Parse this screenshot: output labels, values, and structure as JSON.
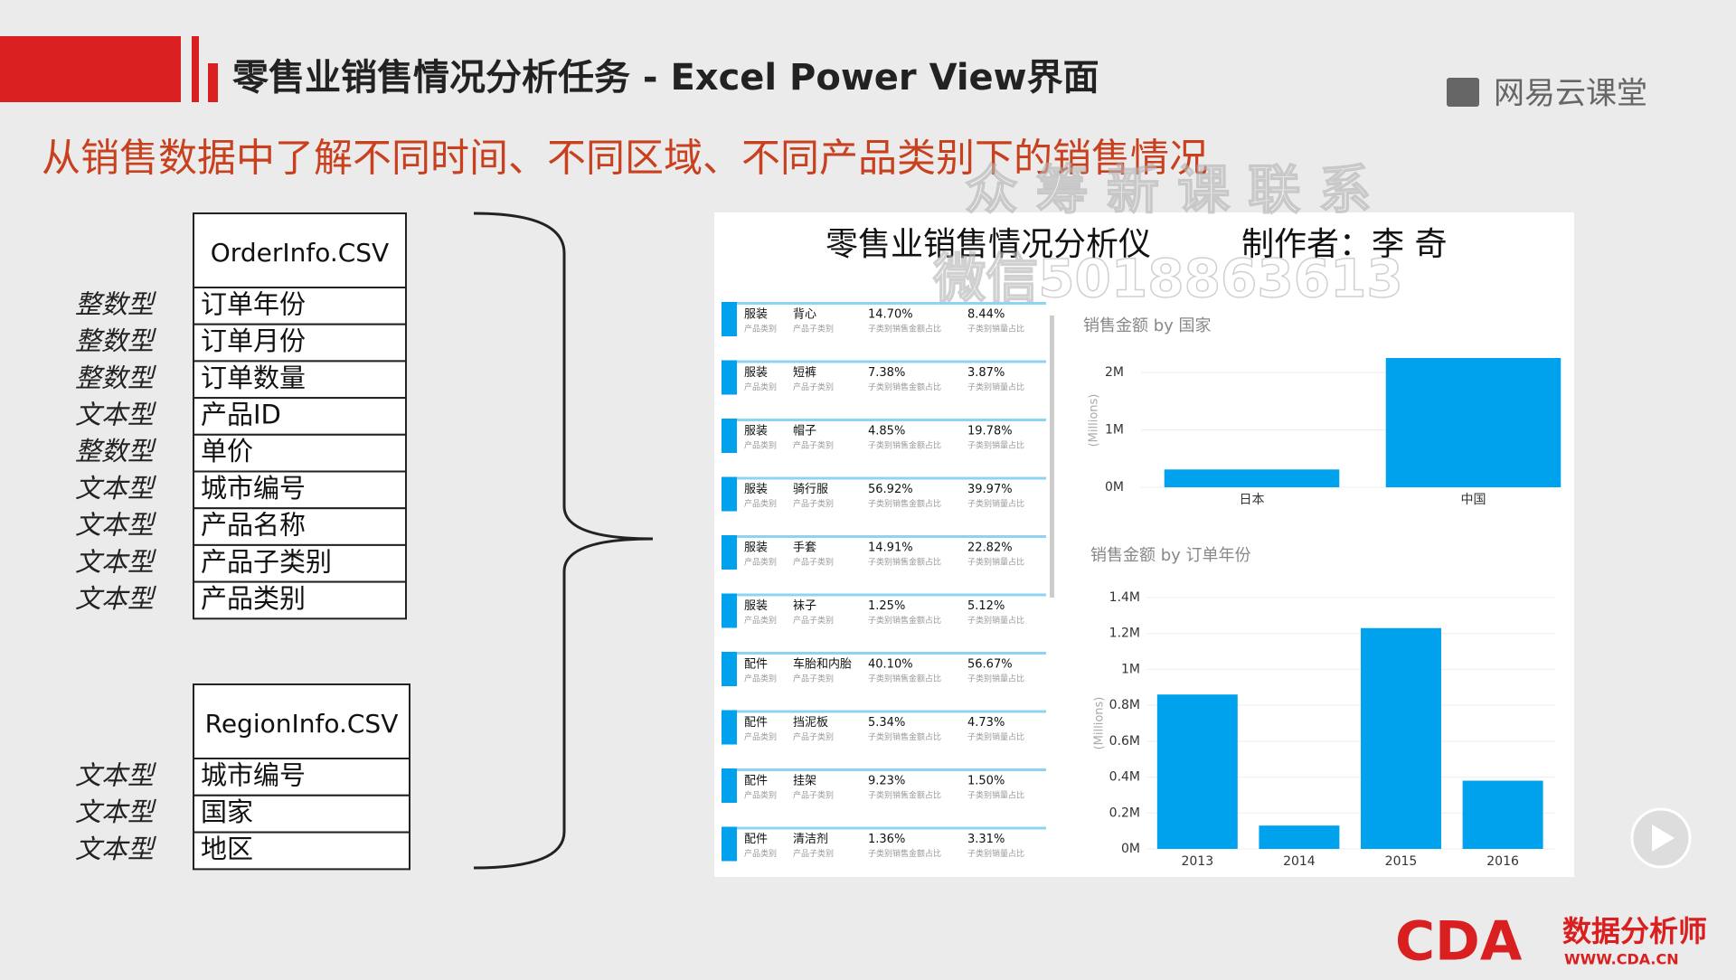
{
  "header": {
    "title": "零售业销售情况分析任务 - Excel Power View界面",
    "logo": "网易云课堂",
    "subtitle": "从销售数据中了解不同时间、不同区域、不同产品类别下的销售情况"
  },
  "watermark": [
    "众 筹 新 课 联 系",
    "微信5018863613"
  ],
  "tables": [
    {
      "title": "OrderInfo.CSV",
      "rows": [
        [
          "整数型",
          "订单年份"
        ],
        [
          "整数型",
          "订单月份"
        ],
        [
          "整数型",
          "订单数量"
        ],
        [
          "文本型",
          "产品ID"
        ],
        [
          "整数型",
          "单价"
        ],
        [
          "文本型",
          "城市编号"
        ],
        [
          "文本型",
          "产品名称"
        ],
        [
          "文本型",
          "产品子类别"
        ],
        [
          "文本型",
          "产品类别"
        ]
      ]
    },
    {
      "title": "RegionInfo.CSV",
      "rows": [
        [
          "文本型",
          "城市编号"
        ],
        [
          "文本型",
          "国家"
        ],
        [
          "文本型",
          "地区"
        ]
      ]
    }
  ],
  "dashboard": {
    "title": "零售业销售情况分析仪",
    "author": "制作者：李 奇",
    "card_labels": [
      "产品类别",
      "产品子类别",
      "子类别销售金额占比",
      "子类别销量占比"
    ],
    "cards": [
      [
        "服装",
        "背心",
        "14.70%",
        "8.44%"
      ],
      [
        "服装",
        "短裤",
        "7.38%",
        "3.87%"
      ],
      [
        "服装",
        "帽子",
        "4.85%",
        "19.78%"
      ],
      [
        "服装",
        "骑行服",
        "56.92%",
        "39.97%"
      ],
      [
        "服装",
        "手套",
        "14.91%",
        "22.82%"
      ],
      [
        "服装",
        "袜子",
        "1.25%",
        "5.12%"
      ],
      [
        "配件",
        "车胎和内胎",
        "40.10%",
        "56.67%"
      ],
      [
        "配件",
        "挡泥板",
        "5.34%",
        "4.73%"
      ],
      [
        "配件",
        "挂架",
        "9.23%",
        "1.50%"
      ],
      [
        "配件",
        "清洁剂",
        "1.36%",
        "3.31%"
      ]
    ]
  },
  "chart_data": [
    {
      "type": "bar",
      "title": "销售金额 by 国家",
      "y_label": "(Millions)",
      "categories": [
        "日本",
        "中国"
      ],
      "values": [
        0.31,
        2.25
      ],
      "color": "#00a2ed",
      "ylim": [
        0,
        2.25
      ],
      "yticks": [
        {
          "value": 0,
          "label": "0M"
        },
        {
          "value": 1,
          "label": "1M"
        },
        {
          "value": 2,
          "label": "2M"
        }
      ],
      "grid": true
    },
    {
      "type": "bar",
      "title": "销售金额 by 订单年份",
      "y_label": "(Millions)",
      "categories": [
        "2013",
        "2014",
        "2015",
        "2016"
      ],
      "values": [
        0.86,
        0.13,
        1.23,
        0.38
      ],
      "color": "#00a2ed",
      "ylim": [
        0,
        1.4
      ],
      "yticks": [
        {
          "value": 0,
          "label": "0M"
        },
        {
          "value": 0.2,
          "label": "0.2M"
        },
        {
          "value": 0.4,
          "label": "0.4M"
        },
        {
          "value": 0.6,
          "label": "0.6M"
        },
        {
          "value": 0.8,
          "label": "0.8M"
        },
        {
          "value": 1,
          "label": "1M"
        },
        {
          "value": 1.2,
          "label": "1.2M"
        },
        {
          "value": 1.4,
          "label": "1.4M"
        }
      ],
      "grid": true
    }
  ],
  "footer": {
    "logo": "CDA",
    "logo_cn": "数据分析师",
    "url": "WWW.CDA.CN"
  }
}
